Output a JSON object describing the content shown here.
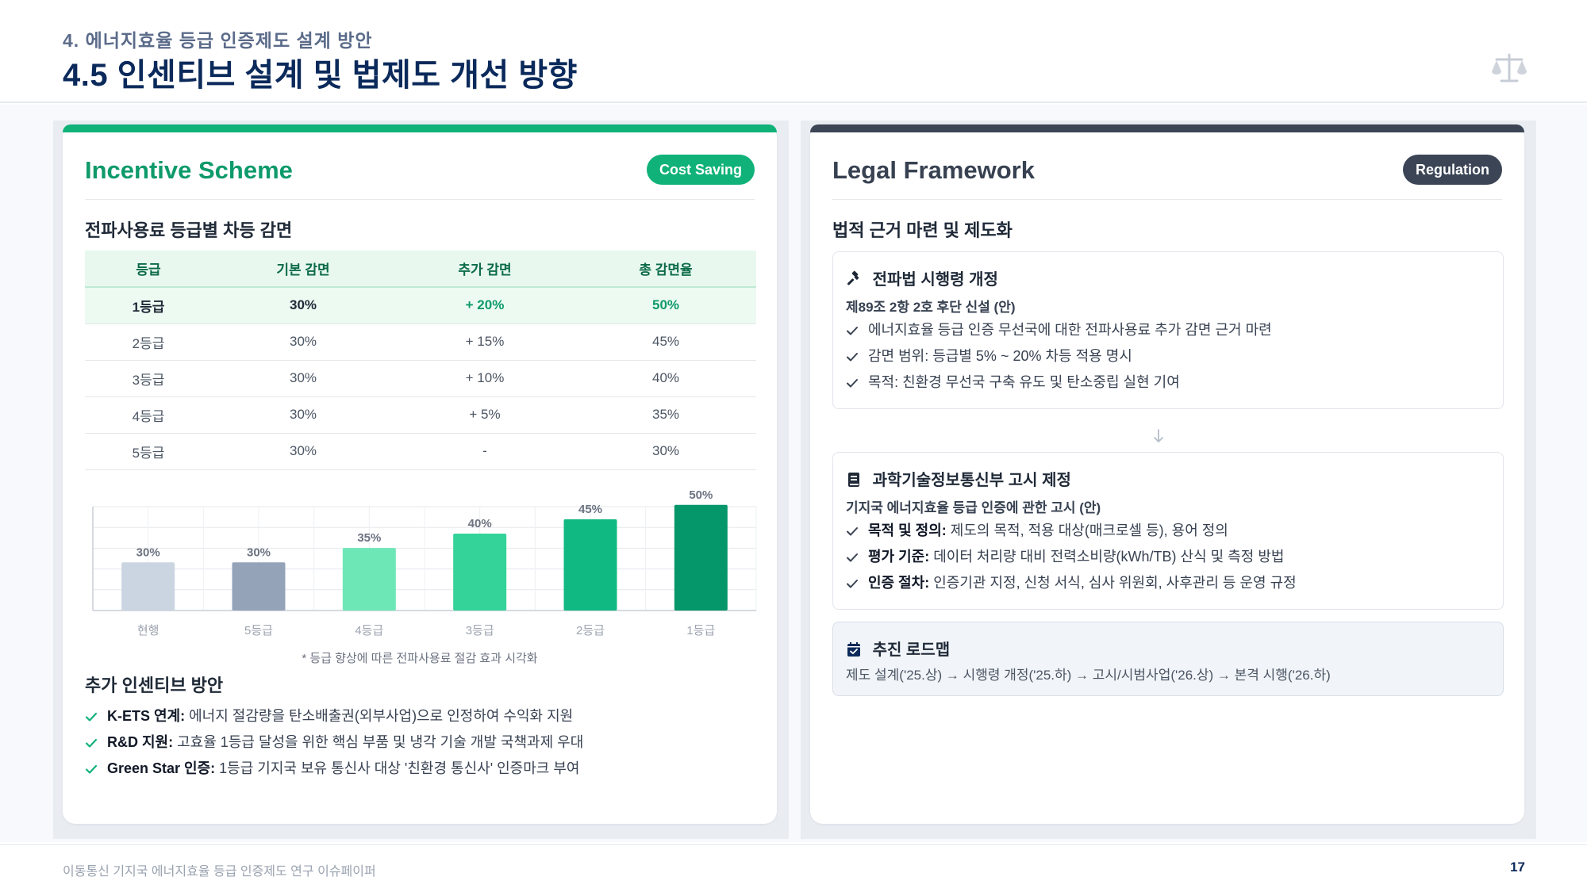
{
  "header": {
    "kicker": "4. 에너지효율 등급 인증제도 설계 방안",
    "title": "4.5 인센티브 설계 및 법제도 개선 방향",
    "icon": "balance-scale-icon"
  },
  "incentive": {
    "title": "Incentive Scheme",
    "badge": "Cost Saving",
    "table_heading": "전파사용료 등급별 차등 감면",
    "columns": [
      "등급",
      "기본 감면",
      "추가 감면",
      "총 감면율"
    ],
    "rows": [
      [
        "1등급",
        "30%",
        "+ 20%",
        "50%"
      ],
      [
        "2등급",
        "30%",
        "+ 15%",
        "45%"
      ],
      [
        "3등급",
        "30%",
        "+ 10%",
        "40%"
      ],
      [
        "4등급",
        "30%",
        "+ 5%",
        "35%"
      ],
      [
        "5등급",
        "30%",
        "-",
        "30%"
      ]
    ],
    "chart_caption": "* 등급 향상에 따른 전파사용료 절감 효과 시각화",
    "extra_heading": "추가 인센티브 방안",
    "extra_items": [
      {
        "label": "K-ETS 연계:",
        "text": " 에너지 절감량을 탄소배출권(외부사업)으로 인정하여 수익화 지원"
      },
      {
        "label": "R&D 지원:",
        "text": " 고효율 1등급 달성을 위한 핵심 부품 및 냉각 기술 개발 국책과제 우대"
      },
      {
        "label": "Green Star 인증:",
        "text": " 1등급 기지국 보유 통신사 대상 '친환경 통신사' 인증마크 부여"
      }
    ]
  },
  "chart_data": {
    "type": "bar",
    "categories": [
      "현행",
      "5등급",
      "4등급",
      "3등급",
      "2등급",
      "1등급"
    ],
    "values": [
      30,
      30,
      35,
      40,
      45,
      50
    ],
    "value_labels": [
      "30%",
      "30%",
      "35%",
      "40%",
      "45%",
      "50%"
    ],
    "bar_colors": [
      "#cbd5e1",
      "#94a3b8",
      "#6ee7b7",
      "#34d399",
      "#10b981",
      "#059669"
    ],
    "ylim": [
      0,
      55
    ],
    "grid": true,
    "title": "",
    "xlabel": "",
    "ylabel": ""
  },
  "legal": {
    "title": "Legal Framework",
    "badge": "Regulation",
    "heading": "법적 근거 마련 및 제도화",
    "box1": {
      "icon": "gavel-icon",
      "title": "전파법 시행령 개정",
      "subtitle": "제89조 2항 2호 후단 신설 (안)",
      "items": [
        "에너지효율 등급 인증 무선국에 대한 전파사용료 추가 감면 근거 마련",
        "감면 범위: 등급별 5% ~ 20% 차등 적용 명시",
        "목적: 친환경 무선국 구축 유도 및 탄소중립 실현 기여"
      ]
    },
    "box2": {
      "icon": "book-icon",
      "title": "과학기술정보통신부 고시 제정",
      "subtitle": "기지국 에너지효율 등급 인증에 관한 고시 (안)",
      "items": [
        {
          "label": "목적 및 정의:",
          "text": " 제도의 목적, 적용 대상(매크로셀 등), 용어 정의"
        },
        {
          "label": "평가 기준:",
          "text": " 데이터 처리량 대비 전력소비량(kWh/TB) 산식 및 측정 방법"
        },
        {
          "label": "인증 절차:",
          "text": " 인증기관 지정, 신청 서식, 심사 위원회, 사후관리 등 운영 규정"
        }
      ]
    },
    "box3": {
      "icon": "calendar-check-icon",
      "title": "추진 로드맵",
      "text": "제도 설계('25.상) → 시행령 개정('25.하) → 고시/시범사업('26.상) → 본격 시행('26.하)"
    }
  },
  "footer": {
    "text": "이동통신 기지국 에너지효율 등급 인증제도 연구 이슈페이퍼",
    "page": "17"
  }
}
